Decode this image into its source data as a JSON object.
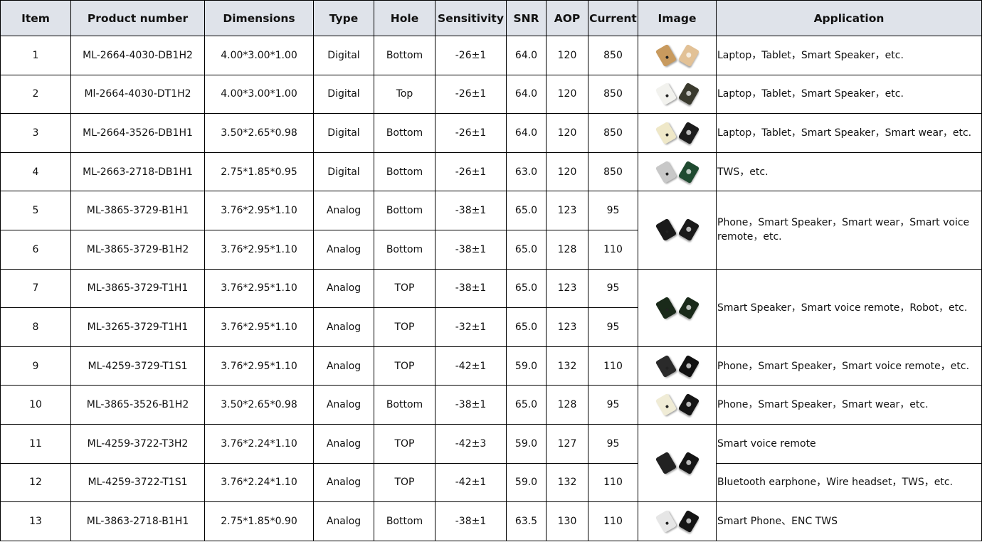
{
  "header": [
    "Item",
    "Product number",
    "Dimensions",
    "Type",
    "Hole",
    "Sensitivity",
    "SNR",
    "AOP",
    "Current",
    "Image",
    "Application"
  ],
  "rows": [
    {
      "item": "1",
      "product": "ML-2664-4030-DB1H2",
      "dimensions": "4.00*3.00*1.00",
      "type": "Digital",
      "hole": "Bottom",
      "sensitivity": "-26±1",
      "snr": "64.0",
      "aop": "120",
      "current": "850"
    },
    {
      "item": "2",
      "product": "Ml-2664-4030-DT1H2",
      "dimensions": "4.00*3.00*1.00",
      "type": "Digital",
      "hole": "Top",
      "sensitivity": "-26±1",
      "snr": "64.0",
      "aop": "120",
      "current": "850"
    },
    {
      "item": "3",
      "product": "ML-2664-3526-DB1H1",
      "dimensions": "3.50*2.65*0.98",
      "type": "Digital",
      "hole": "Bottom",
      "sensitivity": "-26±1",
      "snr": "64.0",
      "aop": "120",
      "current": "850"
    },
    {
      "item": "4",
      "product": "ML-2663-2718-DB1H1",
      "dimensions": "2.75*1.85*0.95",
      "type": "Digital",
      "hole": "Bottom",
      "sensitivity": "-26±1",
      "snr": "63.0",
      "aop": "120",
      "current": "850"
    },
    {
      "item": "5",
      "product": "ML-3865-3729-B1H1",
      "dimensions": "3.76*2.95*1.10",
      "type": "Analog",
      "hole": "Bottom",
      "sensitivity": "-38±1",
      "snr": "65.0",
      "aop": "123",
      "current": "95"
    },
    {
      "item": "6",
      "product": "ML-3865-3729-B1H2",
      "dimensions": "3.76*2.95*1.10",
      "type": "Analog",
      "hole": "Bottom",
      "sensitivity": "-38±1",
      "snr": "65.0",
      "aop": "128",
      "current": "110"
    },
    {
      "item": "7",
      "product": "ML-3865-3729-T1H1",
      "dimensions": "3.76*2.95*1.10",
      "type": "Analog",
      "hole": "TOP",
      "sensitivity": "-38±1",
      "snr": "65.0",
      "aop": "123",
      "current": "95"
    },
    {
      "item": "8",
      "product": "ML-3265-3729-T1H1",
      "dimensions": "3.76*2.95*1.10",
      "type": "Analog",
      "hole": "TOP",
      "sensitivity": "-32±1",
      "snr": "65.0",
      "aop": "123",
      "current": "95"
    },
    {
      "item": "9",
      "product": "ML-4259-3729-T1S1",
      "dimensions": "3.76*2.95*1.10",
      "type": "Analog",
      "hole": "TOP",
      "sensitivity": "-42±1",
      "snr": "59.0",
      "aop": "132",
      "current": "110"
    },
    {
      "item": "10",
      "product": "ML-3865-3526-B1H2",
      "dimensions": "3.50*2.65*0.98",
      "type": "Analog",
      "hole": "Bottom",
      "sensitivity": "-38±1",
      "snr": "65.0",
      "aop": "128",
      "current": "95"
    },
    {
      "item": "11",
      "product": "ML-4259-3722-T3H2",
      "dimensions": "3.76*2.24*1.10",
      "type": "Analog",
      "hole": "TOP",
      "sensitivity": "-42±3",
      "snr": "59.0",
      "aop": "127",
      "current": "95"
    },
    {
      "item": "12",
      "product": "ML-4259-3722-T1S1",
      "dimensions": "3.76*2.24*1.10",
      "type": "Analog",
      "hole": "TOP",
      "sensitivity": "-42±1",
      "snr": "59.0",
      "aop": "132",
      "current": "110"
    },
    {
      "item": "13",
      "product": "ML-3863-2718-B1H1",
      "dimensions": "2.75*1.85*0.90",
      "type": "Analog",
      "hole": "Bottom",
      "sensitivity": "-38±1",
      "snr": "63.5",
      "aop": "130",
      "current": "110"
    }
  ],
  "images": [
    {
      "start": 0,
      "span": 1,
      "colors": [
        "#c89a5e",
        "#e2c196"
      ]
    },
    {
      "start": 1,
      "span": 1,
      "colors": [
        "#f2f2ee",
        "#3a3a2e"
      ]
    },
    {
      "start": 2,
      "span": 1,
      "colors": [
        "#efe8c8",
        "#1c1c1c"
      ]
    },
    {
      "start": 3,
      "span": 1,
      "colors": [
        "#c8c8c8",
        "#1f4a30"
      ]
    },
    {
      "start": 4,
      "span": 2,
      "colors": [
        "#1a1a1a",
        "#1a1a1a"
      ]
    },
    {
      "start": 6,
      "span": 2,
      "colors": [
        "#1a2a1a",
        "#1a2a1a"
      ]
    },
    {
      "start": 8,
      "span": 1,
      "colors": [
        "#2a2a2a",
        "#111111"
      ]
    },
    {
      "start": 9,
      "span": 1,
      "colors": [
        "#f0ecd6",
        "#151515"
      ]
    },
    {
      "start": 10,
      "span": 2,
      "colors": [
        "#222222",
        "#151515"
      ]
    },
    {
      "start": 12,
      "span": 1,
      "colors": [
        "#e6e6e6",
        "#151515"
      ]
    }
  ],
  "applications": [
    {
      "start": 0,
      "span": 1,
      "text": "Laptop，Tablet，Smart Speaker，etc."
    },
    {
      "start": 1,
      "span": 1,
      "text": "Laptop，Tablet，Smart Speaker，etc."
    },
    {
      "start": 2,
      "span": 1,
      "text": "Laptop，Tablet，Smart Speaker，Smart wear，etc."
    },
    {
      "start": 3,
      "span": 1,
      "text": "TWS，etc."
    },
    {
      "start": 4,
      "span": 2,
      "text": "Phone，Smart Speaker，Smart wear，Smart voice remote，etc."
    },
    {
      "start": 6,
      "span": 2,
      "text": "Smart Speaker，Smart voice remote，Robot，etc."
    },
    {
      "start": 8,
      "span": 1,
      "text": "Phone，Smart Speaker，Smart voice remote，etc."
    },
    {
      "start": 9,
      "span": 1,
      "text": "Phone，Smart Speaker，Smart wear，etc."
    },
    {
      "start": 10,
      "span": 1,
      "text": "Smart voice remote"
    },
    {
      "start": 11,
      "span": 1,
      "text": "Bluetooth earphone，Wire headset，TWS，etc."
    },
    {
      "start": 12,
      "span": 1,
      "text": "Smart Phone、ENC TWS"
    }
  ]
}
